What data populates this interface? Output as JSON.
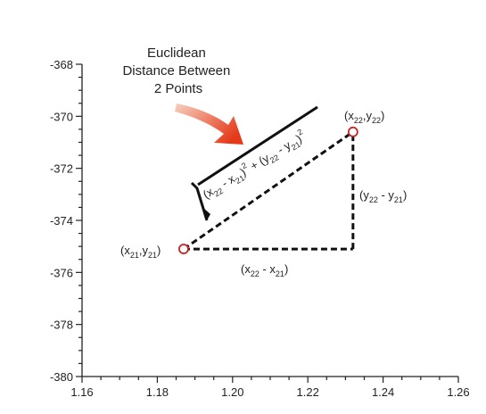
{
  "chart_data": {
    "type": "scatter",
    "title_lines": [
      "Euclidean",
      "Distance Between",
      "2 Points"
    ],
    "xlabel": "",
    "ylabel": "",
    "xlim": [
      1.16,
      1.26
    ],
    "ylim": [
      -380,
      -368
    ],
    "x_ticks": [
      1.16,
      1.18,
      1.2,
      1.22,
      1.24,
      1.26
    ],
    "x_tick_labels": [
      "1.16",
      "1.18",
      "1.20",
      "1.22",
      "1.24",
      "1.26"
    ],
    "y_ticks": [
      -380,
      -378,
      -376,
      -374,
      -372,
      -370,
      -368
    ],
    "y_tick_labels": [
      "-380",
      "-378",
      "-376",
      "-374",
      "-372",
      "-370",
      "-368"
    ],
    "grid": false,
    "points": [
      {
        "x": 1.187,
        "y": -375.1,
        "label": {
          "base1": "(x",
          "sub1": "21",
          "mid": ",y",
          "sub2": "21",
          "end": ")"
        }
      },
      {
        "x": 1.232,
        "y": -370.6,
        "label": {
          "base1": "(x",
          "sub1": "22",
          "mid": ",y",
          "sub2": "22",
          "end": ")"
        }
      }
    ],
    "corner": {
      "x": 1.232,
      "y": -375.1
    },
    "dx_label": {
      "base1": "(x",
      "sub1": "22",
      "mid": " - x",
      "sub2": "21",
      "end": ")"
    },
    "dy_label": {
      "base1": "(y",
      "sub1": "22",
      "mid": " - y",
      "sub2": "21",
      "end": ")"
    },
    "formula": {
      "t1": "(x",
      "s1": "22",
      "t2": " - x",
      "s2": "21",
      "t3": ")",
      "p1": "2",
      "t4": " + (y",
      "s3": "22",
      "t5": " - y",
      "s4": "21",
      "t6": ")",
      "p2": "2"
    },
    "colors": {
      "point_marker": "#c62828",
      "arrow_start": "#f8d0c0",
      "arrow_end": "#e53a1a",
      "lines": "#111111"
    }
  }
}
